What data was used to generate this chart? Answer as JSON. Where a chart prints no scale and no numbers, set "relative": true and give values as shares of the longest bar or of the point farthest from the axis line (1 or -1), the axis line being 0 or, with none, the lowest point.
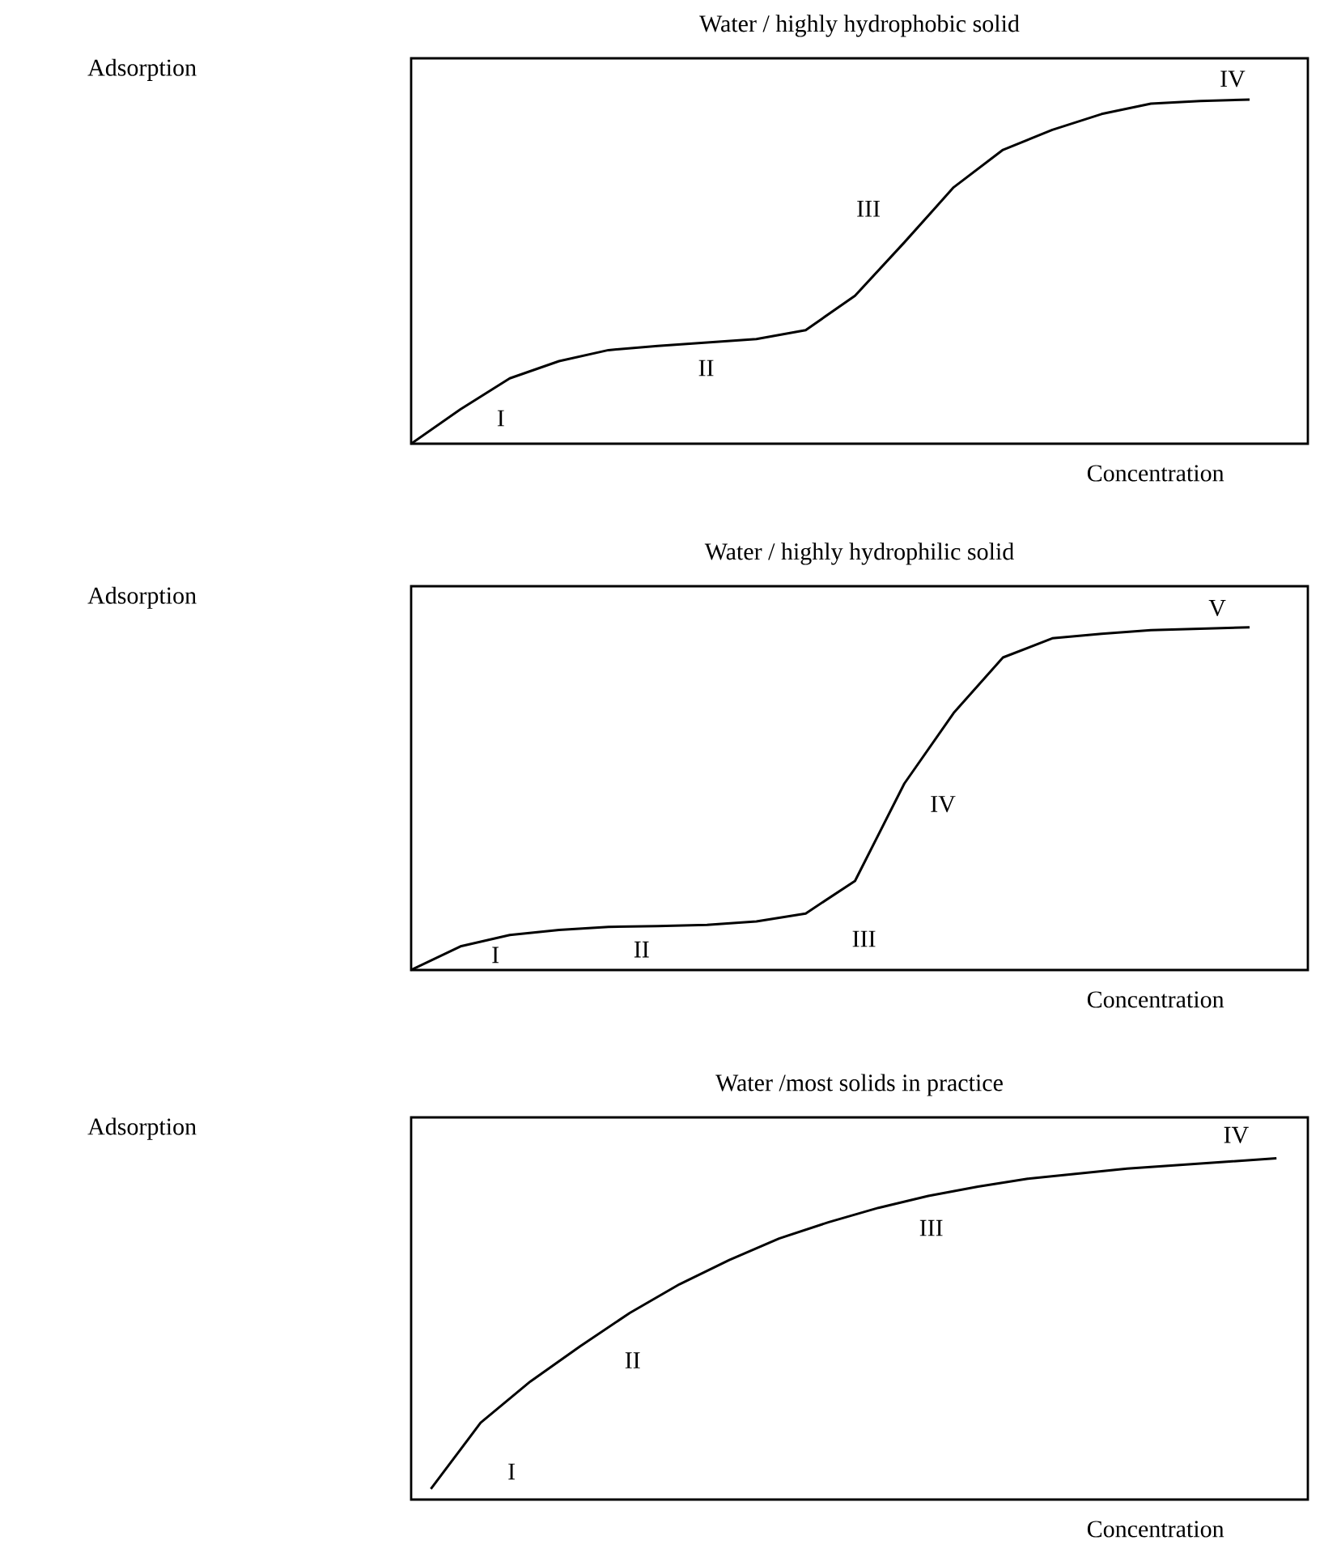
{
  "chart_data": [
    {
      "type": "line",
      "title": "Water / highly hydrophobic solid",
      "xlabel": "Concentration",
      "ylabel": "Adsorption",
      "relative": true,
      "color": "#000000",
      "categories": [
        null,
        null,
        null,
        null,
        null,
        null,
        null,
        null,
        null,
        null,
        null,
        null,
        null,
        null,
        null,
        null,
        null,
        null
      ],
      "values": [
        0,
        0.1,
        0.19,
        0.24,
        0.272,
        0.284,
        0.294,
        0.304,
        0.33,
        0.43,
        0.585,
        0.745,
        0.854,
        0.912,
        0.958,
        0.988,
        0.996,
        1
      ],
      "annotations": [
        "I",
        "II",
        "III",
        "IV"
      ]
    },
    {
      "type": "line",
      "title": "Water / highly hydrophilic solid",
      "xlabel": "Concentration",
      "ylabel": "Adsorption",
      "relative": true,
      "color": "#000000",
      "categories": [
        null,
        null,
        null,
        null,
        null,
        null,
        null,
        null,
        null,
        null,
        null,
        null,
        null,
        null,
        null,
        null,
        null,
        null
      ],
      "values": [
        0,
        0.069,
        0.102,
        0.117,
        0.126,
        0.128,
        0.132,
        0.142,
        0.165,
        0.26,
        0.544,
        0.75,
        0.912,
        0.968,
        0.981,
        0.992,
        0.996,
        1
      ],
      "annotations": [
        "I",
        "II",
        "III",
        "IV",
        "V"
      ]
    },
    {
      "type": "line",
      "title": "Water /most solids in practice",
      "xlabel": "Concentration",
      "ylabel": "Adsorption",
      "relative": true,
      "color": "#000000",
      "categories": [
        null,
        null,
        null,
        null,
        null,
        null,
        null,
        null,
        null,
        null,
        null,
        null,
        null,
        null,
        null,
        null,
        null,
        null
      ],
      "values": [
        0.031,
        0.225,
        0.346,
        0.449,
        0.547,
        0.631,
        0.702,
        0.765,
        0.813,
        0.855,
        0.89,
        0.917,
        0.94,
        0.955,
        0.97,
        0.98,
        0.99,
        1
      ],
      "annotations": [
        "I",
        "II",
        "III",
        "IV"
      ]
    }
  ]
}
